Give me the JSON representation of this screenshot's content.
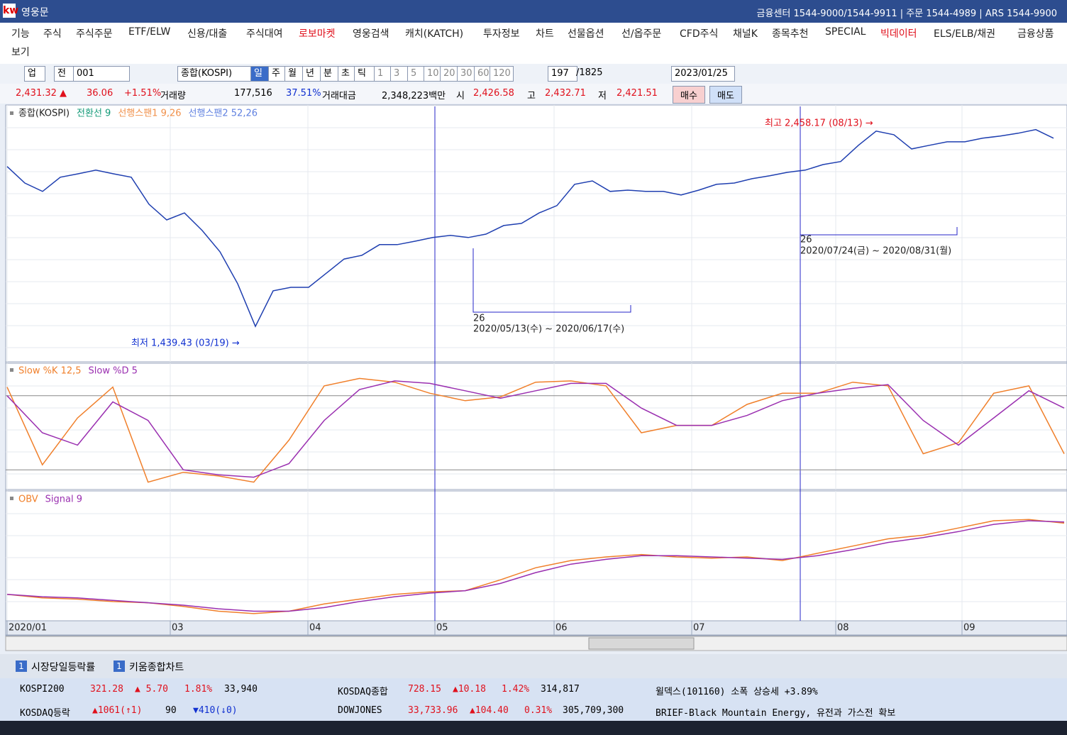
{
  "title_bar": {
    "app": "영웅문",
    "info": "금융센터 1544-9000/1544-9911 | 주문 1544-4989 | ARS 1544-9900"
  },
  "menu": [
    "기능",
    "주식",
    "주식주문",
    "ETF/ELW",
    "신용/대출",
    "주식대여",
    "로보마켓",
    "영웅검색",
    "캐치(KATCH)",
    "투자정보",
    "차트",
    "선물옵션",
    "선/옵주문",
    "CFD주식",
    "채널K",
    "종목추천",
    "SPECIAL",
    "빅데이터",
    "ELS/ELB/채권",
    "금융상품",
    "보기"
  ],
  "toolbar": [
    "업",
    "전",
    "001",
    "종합(KOSPI)",
    "일",
    "주",
    "월",
    "년",
    "분",
    "초",
    "틱",
    "1",
    "3",
    "5",
    "10",
    "20",
    "30",
    "60",
    "120",
    "197",
    "/1825",
    "2023/01/25"
  ],
  "quote": [
    "2,431.32 ▲",
    "36.06",
    "+1.51%",
    "거래량",
    "177,516",
    "37.51%",
    "거래대금",
    "2,348,223백만",
    "시",
    "2,426.58",
    "고",
    "2,432.71",
    "저",
    "2,421.51",
    "매수",
    "매도"
  ],
  "chart_data": [
    {
      "type": "line",
      "legend": [
        "종합(KOSPI)",
        "전환선 9",
        "선행스팬1 9,26",
        "선행스팬2 52,26"
      ],
      "annotations": [
        "최고 2,458.17 (08/13) →",
        "최저 1,439.43 (03/19) →",
        "26",
        "2020/05/13(수) ~ 2020/06/17(수)",
        "26",
        "2020/07/24(금) ~ 2020/08/31(월)"
      ],
      "ylim": [
        1350,
        2540
      ],
      "series": [
        {
          "name": "종합(KOSPI)",
          "color": "#1f3fb0",
          "values": [
            2260,
            2183,
            2144,
            2210,
            2226,
            2243,
            2226,
            2210,
            2084,
            2011,
            2044,
            1962,
            1863,
            1714,
            1515,
            1681,
            1697,
            1697,
            1763,
            1829,
            1846,
            1896,
            1896,
            1912,
            1929,
            1939,
            1929,
            1945,
            1985,
            1995,
            2044,
            2078,
            2177,
            2193,
            2144,
            2150,
            2144,
            2144,
            2127,
            2150,
            2177,
            2183,
            2203,
            2217,
            2233,
            2243,
            2269,
            2283,
            2359,
            2425,
            2408,
            2342,
            2359,
            2375,
            2375,
            2392,
            2402,
            2415,
            2432,
            2392
          ]
        }
      ]
    },
    {
      "type": "line",
      "legend": [
        "Slow %K 12,5",
        "Slow %D 5"
      ],
      "ylim": [
        0,
        100
      ],
      "yticks": [
        20,
        80
      ],
      "series": [
        {
          "name": "Slow %K 12,5",
          "color": "#f07f2a",
          "values": [
            87,
            24,
            62,
            87,
            10,
            18,
            15,
            10,
            44,
            88,
            94,
            91,
            82,
            76,
            79,
            91,
            92,
            88,
            50,
            56,
            56,
            73,
            82,
            82,
            91,
            88,
            33,
            42,
            82,
            88,
            33
          ]
        },
        {
          "name": "Slow %D 5",
          "color": "#9a2fb0",
          "values": [
            80,
            50,
            40,
            75,
            60,
            20,
            16,
            14,
            25,
            60,
            85,
            92,
            90,
            84,
            78,
            84,
            90,
            90,
            70,
            56,
            56,
            64,
            76,
            82,
            86,
            89,
            60,
            40,
            62,
            84,
            70
          ]
        }
      ]
    },
    {
      "type": "line",
      "legend": [
        "OBV",
        "Signal 9"
      ],
      "ylim": [
        0,
        100
      ],
      "series": [
        {
          "name": "OBV",
          "color": "#f07f2a",
          "values": [
            19,
            16,
            15,
            13,
            12,
            9,
            5,
            3,
            5,
            11,
            15,
            19,
            21,
            22,
            31,
            41,
            47,
            50,
            52,
            50,
            49,
            50,
            47,
            53,
            59,
            65,
            68,
            74,
            80,
            81,
            78
          ]
        },
        {
          "name": "Signal 9",
          "color": "#9a2fb0",
          "values": [
            19,
            17,
            16,
            14,
            12,
            10,
            7,
            5,
            5,
            8,
            13,
            17,
            20,
            22,
            28,
            37,
            44,
            48,
            51,
            51,
            50,
            49,
            48,
            51,
            56,
            62,
            66,
            71,
            77,
            80,
            79
          ]
        }
      ]
    }
  ],
  "x_axis": [
    "2020/01",
    "03",
    "04",
    "05",
    "06",
    "07",
    "08",
    "09"
  ],
  "tabs": [
    {
      "badge": "1",
      "label": "시장당일등락률"
    },
    {
      "badge": "1",
      "label": "키움종합차트"
    }
  ],
  "ticker": [
    [
      "KOSPI200",
      "321.28",
      "▲ 5.70",
      "1.81%",
      "33,940",
      "KOSDAQ종합",
      "728.15",
      "▲10.18",
      "1.42%",
      "314,817",
      "윌덱스(101160) 소폭 상승세 +3.89%"
    ],
    [
      "KOSDAQ등락",
      "▲1061(↑1)",
      "90",
      "▼410(↓0)",
      "DOWJONES",
      "33,733.96",
      "▲104.40",
      "0.31%",
      "305,709,300",
      "BRIEF-Black Mountain Energy, 유전과 가스전 확보"
    ]
  ]
}
